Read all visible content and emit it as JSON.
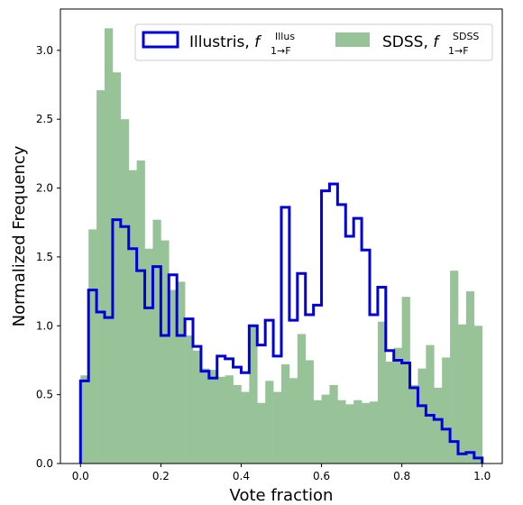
{
  "chart_data": {
    "type": "histogram",
    "xlabel": "Vote fraction",
    "ylabel": "Normalized Frequency",
    "xlim": [
      -0.05,
      1.05
    ],
    "ylim": [
      0,
      3.3
    ],
    "xticks": [
      "0.0",
      "0.2",
      "0.4",
      "0.6",
      "0.8",
      "1.0"
    ],
    "xtick_values": [
      0,
      0.2,
      0.4,
      0.6,
      0.8,
      1.0
    ],
    "yticks": [
      "0.0",
      "0.5",
      "1.0",
      "1.5",
      "2.0",
      "2.5",
      "3.0"
    ],
    "ytick_values": [
      0,
      0.5,
      1.0,
      1.5,
      2.0,
      2.5,
      3.0
    ],
    "bin_edges": [
      0.0,
      0.02,
      0.04,
      0.06,
      0.08,
      0.1,
      0.12,
      0.14,
      0.16,
      0.18,
      0.2,
      0.22,
      0.24,
      0.26,
      0.28,
      0.3,
      0.32,
      0.34,
      0.36,
      0.38,
      0.4,
      0.42,
      0.44,
      0.46,
      0.48,
      0.5,
      0.52,
      0.54,
      0.56,
      0.58,
      0.6,
      0.62,
      0.64,
      0.66,
      0.68,
      0.7,
      0.72,
      0.74,
      0.76,
      0.78,
      0.8,
      0.82,
      0.84,
      0.86,
      0.88,
      0.9,
      0.92,
      0.94,
      0.96,
      0.98,
      1.0
    ],
    "legend_position": "upper right",
    "series": [
      {
        "name": "Illustris",
        "legend_main": "Illustris, ",
        "legend_f": "f",
        "legend_sub": "1→F",
        "legend_sup": "Illus",
        "style": "step",
        "color": "#0000dd",
        "values": [
          0.6,
          1.26,
          1.1,
          1.06,
          1.77,
          1.72,
          1.56,
          1.4,
          1.13,
          1.43,
          0.93,
          1.37,
          0.93,
          1.05,
          0.85,
          0.67,
          0.62,
          0.78,
          0.76,
          0.7,
          0.66,
          1.0,
          0.86,
          1.04,
          0.78,
          1.86,
          1.04,
          1.38,
          1.08,
          1.15,
          1.98,
          2.03,
          1.88,
          1.65,
          1.78,
          1.55,
          1.08,
          1.28,
          0.82,
          0.75,
          0.73,
          0.55,
          0.42,
          0.35,
          0.32,
          0.25,
          0.16,
          0.07,
          0.08,
          0.04
        ]
      },
      {
        "name": "SDSS",
        "legend_main": "SDSS, ",
        "legend_f": "f",
        "legend_sub": "1→F",
        "legend_sup": "SDSS",
        "style": "filled",
        "color": "#98c298",
        "values": [
          0.64,
          1.7,
          2.71,
          3.16,
          2.84,
          2.5,
          2.13,
          2.2,
          1.56,
          1.77,
          1.62,
          1.26,
          1.32,
          0.93,
          0.82,
          0.69,
          0.68,
          0.63,
          0.64,
          0.57,
          0.52,
          1.01,
          0.44,
          0.6,
          0.52,
          0.72,
          0.62,
          0.94,
          0.75,
          0.46,
          0.5,
          0.57,
          0.46,
          0.43,
          0.46,
          0.44,
          0.45,
          1.03,
          0.74,
          0.84,
          1.21,
          0.57,
          0.69,
          0.86,
          0.55,
          0.77,
          1.4,
          1.01,
          1.25,
          1.0
        ]
      }
    ]
  }
}
